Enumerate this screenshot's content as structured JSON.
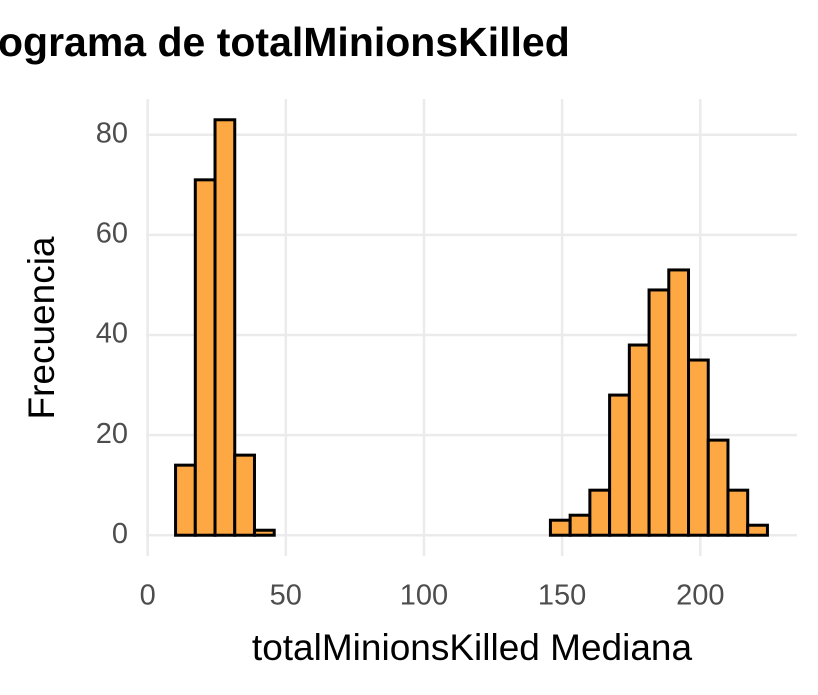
{
  "chart_data": {
    "type": "histogram",
    "title": "ograma de totalMinionsKilled",
    "x_label": "totalMinionsKilled Mediana",
    "y_label": "Frecuencia",
    "bins": [
      10.1,
      17.24,
      24.38,
      31.52,
      38.66,
      45.8,
      52.94,
      60.08,
      67.22,
      74.36,
      81.5,
      88.64,
      95.78,
      102.92,
      110.06,
      117.2,
      124.34,
      131.48,
      138.62,
      145.76,
      152.9,
      160.04,
      167.18,
      174.32,
      181.46,
      188.6,
      195.74,
      202.88,
      210.02,
      217.16,
      224.3
    ],
    "values": [
      14,
      71,
      83,
      16,
      1,
      0,
      0,
      0,
      0,
      0,
      0,
      0,
      0,
      0,
      0,
      0,
      0,
      0,
      0,
      3,
      4,
      9,
      28,
      38,
      49,
      53,
      35,
      19,
      9,
      2
    ],
    "color": "#fda842",
    "edge_color": "#000000",
    "xlim": [
      -0.6,
      235
    ],
    "ylim": [
      -4.15,
      87.15
    ],
    "xticks": [
      0,
      50,
      100,
      150,
      200
    ],
    "yticks": [
      0,
      20,
      40,
      60,
      80
    ],
    "grid": true
  }
}
